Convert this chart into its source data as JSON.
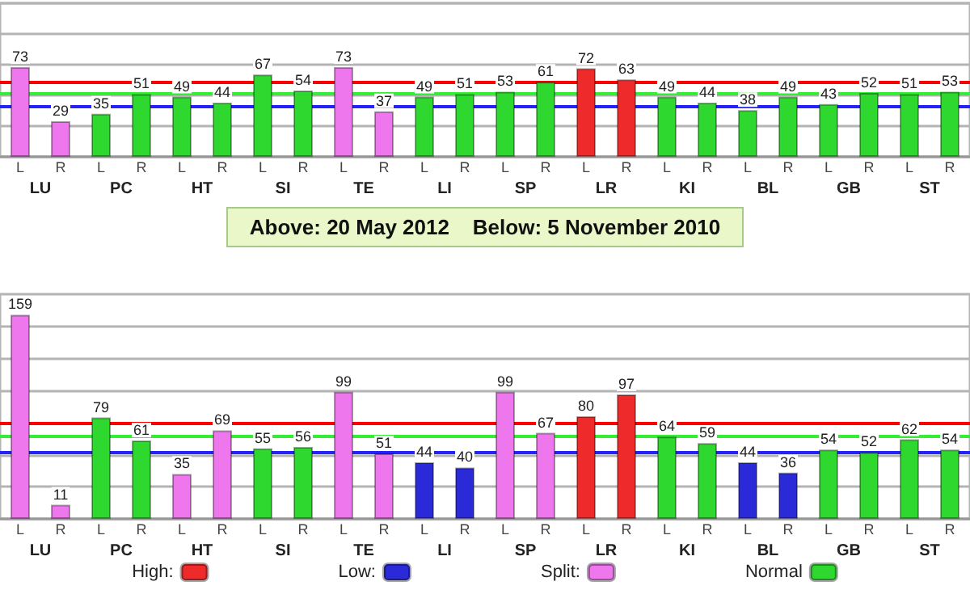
{
  "chart_data": [
    {
      "type": "bar",
      "stacked": true,
      "categories": [
        "L",
        "R",
        "L",
        "R",
        "L",
        "R",
        "L",
        "R",
        "L",
        "R",
        "L",
        "R",
        "L",
        "R",
        "L",
        "R",
        "L",
        "R",
        "L",
        "R",
        "L",
        "R",
        "L",
        "R"
      ],
      "annotations": [
        "LU",
        "PC",
        "HT",
        "SI",
        "TE",
        "LI",
        "SP",
        "LR",
        "KI",
        "BL",
        "GB",
        "ST"
      ],
      "series": [
        {
          "color": "#ee2a2a",
          "values": [
            null,
            null,
            null,
            null,
            null,
            null,
            null,
            null,
            null,
            null,
            null,
            null,
            null,
            null,
            72,
            63,
            null,
            null,
            null,
            null,
            null,
            null,
            null,
            null
          ]
        },
        {
          "color": "#2a2ad8",
          "values": [
            null,
            null,
            null,
            null,
            null,
            null,
            null,
            null,
            null,
            null,
            null,
            null,
            null,
            null,
            null,
            null,
            null,
            null,
            null,
            null,
            null,
            null,
            null,
            null
          ]
        },
        {
          "color": "#ee77ee",
          "values": [
            73,
            29,
            null,
            null,
            null,
            null,
            null,
            null,
            73,
            37,
            null,
            null,
            null,
            null,
            null,
            null,
            null,
            null,
            null,
            null,
            null,
            null,
            null,
            null
          ]
        },
        {
          "color": "#2ed82e",
          "values": [
            null,
            null,
            35,
            51,
            49,
            44,
            67,
            54,
            null,
            null,
            49,
            51,
            53,
            61,
            null,
            null,
            49,
            44,
            38,
            49,
            43,
            52,
            51,
            53
          ]
        }
      ],
      "ylim": [
        0,
        125
      ],
      "yticks": [
        0,
        25,
        50,
        75,
        100,
        125
      ],
      "grid": "y",
      "tick_labels": "x",
      "data_labels": true,
      "ref_lines": [
        {
          "axis": "y",
          "value": 61,
          "color": "#ff0000"
        },
        {
          "axis": "y",
          "value": 51,
          "color": "#33ee33"
        },
        {
          "axis": "y",
          "value": 41,
          "color": "#2222ff"
        }
      ]
    },
    {
      "type": "bar",
      "stacked": true,
      "title": "Above: 20 May 2012    Below: 5 November 2010",
      "categories": [
        "L",
        "R",
        "L",
        "R",
        "L",
        "R",
        "L",
        "R",
        "L",
        "R",
        "L",
        "R",
        "L",
        "R",
        "L",
        "R",
        "L",
        "R",
        "L",
        "R",
        "L",
        "R",
        "L",
        "R"
      ],
      "annotations": [
        "LU",
        "PC",
        "HT",
        "SI",
        "TE",
        "LI",
        "SP",
        "LR",
        "KI",
        "BL",
        "GB",
        "ST"
      ],
      "series": [
        {
          "name": "High:",
          "color": "#ee2a2a",
          "values": [
            null,
            null,
            null,
            null,
            null,
            null,
            null,
            null,
            null,
            null,
            null,
            null,
            null,
            null,
            80,
            97,
            null,
            null,
            null,
            null,
            null,
            null,
            null,
            null
          ]
        },
        {
          "name": "Low:",
          "color": "#2a2ad8",
          "values": [
            null,
            null,
            null,
            null,
            null,
            null,
            null,
            null,
            null,
            null,
            44,
            40,
            null,
            null,
            null,
            null,
            null,
            null,
            44,
            36,
            null,
            null,
            null,
            null
          ]
        },
        {
          "name": "Split:",
          "color": "#ee77ee",
          "values": [
            159,
            11,
            null,
            null,
            35,
            69,
            null,
            null,
            99,
            51,
            null,
            null,
            99,
            67,
            null,
            null,
            null,
            null,
            null,
            null,
            null,
            null,
            null,
            null
          ]
        },
        {
          "name": "Normal",
          "color": "#2ed82e",
          "values": [
            null,
            null,
            79,
            61,
            null,
            null,
            55,
            56,
            null,
            null,
            null,
            null,
            null,
            null,
            null,
            null,
            64,
            59,
            null,
            null,
            54,
            52,
            62,
            54
          ]
        }
      ],
      "ylim": [
        0,
        175
      ],
      "yticks": [
        0,
        25,
        50,
        75,
        100,
        125,
        150
      ],
      "grid": "y",
      "tick_labels": "x",
      "data_labels": true,
      "legend": "bottom",
      "ref_lines": [
        {
          "axis": "y",
          "value": 75,
          "color": "#ff0000"
        },
        {
          "axis": "y",
          "value": 64,
          "color": "#33ee33"
        },
        {
          "axis": "y",
          "value": 52,
          "color": "#2222ff"
        }
      ]
    }
  ]
}
